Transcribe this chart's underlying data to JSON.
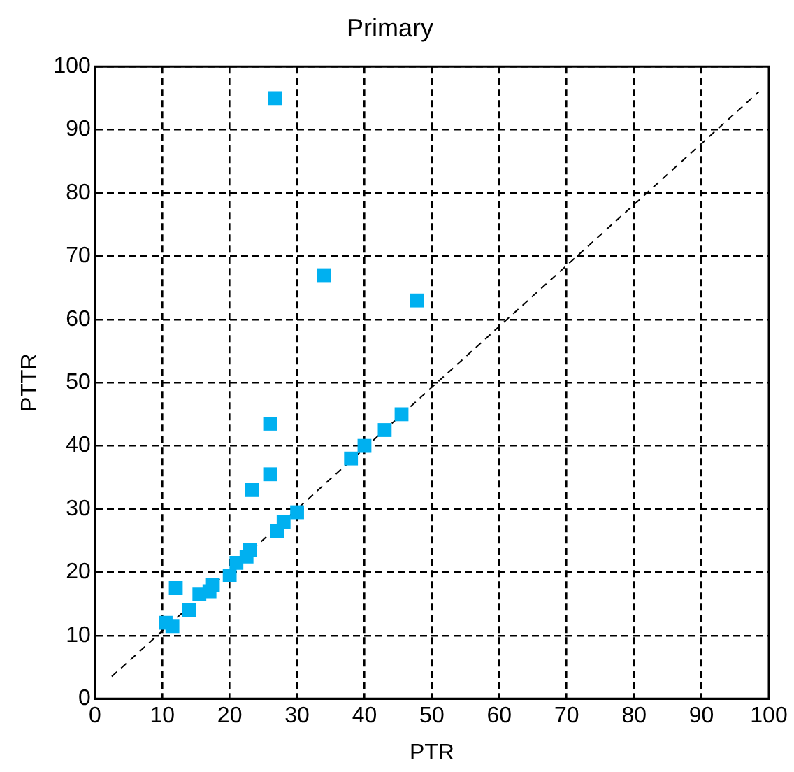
{
  "chart_data": {
    "type": "scatter",
    "title": "Primary",
    "xlabel": "PTR",
    "ylabel": "PTTR",
    "xlim": [
      0,
      100
    ],
    "ylim": [
      0,
      100
    ],
    "xticks": [
      0,
      10,
      20,
      30,
      40,
      50,
      60,
      70,
      80,
      90,
      100
    ],
    "yticks": [
      0,
      10,
      20,
      30,
      40,
      50,
      60,
      70,
      80,
      90,
      100
    ],
    "grid": true,
    "legend": false,
    "marker": "square",
    "series": [
      {
        "color": "#00b0f0",
        "x": [
          26.7,
          34,
          47.8,
          26,
          26,
          23.3,
          12,
          10.5,
          11.5,
          14,
          15.5,
          17,
          17.5,
          20,
          21,
          22.5,
          23,
          27,
          28,
          30,
          38,
          40,
          43,
          45.5
        ],
        "values": [
          95,
          67,
          63,
          43.5,
          35.5,
          33,
          17.5,
          12,
          11.5,
          14,
          16.5,
          17,
          18,
          19.5,
          21.5,
          22.5,
          23.5,
          26.5,
          28,
          29.5,
          38,
          40,
          42.5,
          45
        ]
      },
      {
        "type": "line",
        "color": "#000000",
        "line_style": "dashed",
        "marker": "none",
        "x": [
          2.5,
          98.5
        ],
        "values": [
          3.5,
          96
        ]
      }
    ]
  }
}
